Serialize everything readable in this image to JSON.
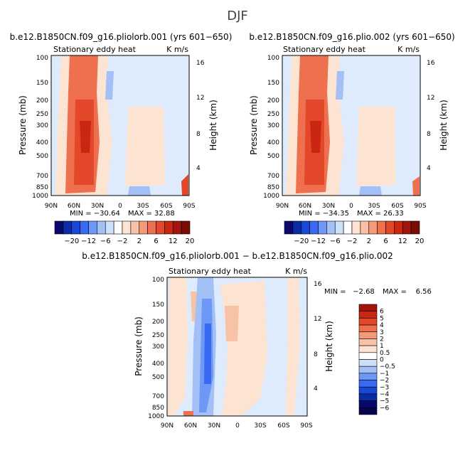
{
  "page_title": "DJF",
  "chart_data": [
    {
      "type": "heatmap",
      "title": "b.e12.B1850CN.f09_g16.pliolorb.001 (yrs 601−650)",
      "subtitle_left": "Stationary eddy heat",
      "subtitle_right": "K m/s",
      "ylabel": "Pressure (mb)",
      "ylabel_right": "Height (km)",
      "x_ticks": [
        "90N",
        "60N",
        "30N",
        "0",
        "30S",
        "60S",
        "90S"
      ],
      "y_ticks": [
        "100",
        "150",
        "200",
        "250",
        "300",
        "400",
        "500",
        "700",
        "850",
        "1000"
      ],
      "y_ticks_right": [
        "16",
        "12",
        "8",
        "4"
      ],
      "min_label": "MIN = −30.64",
      "max_label": "MAX = 32.88",
      "colorbar_labels": [
        "−20",
        "−12",
        "−6",
        "−2",
        "2",
        "6",
        "12",
        "20"
      ],
      "colorbar_colors": [
        "#08086e",
        "#0a2ca6",
        "#1848d8",
        "#3a6af2",
        "#6e98f6",
        "#a2c0f6",
        "#cde0fa",
        "#ffffff",
        "#fde4d2",
        "#f8c2a6",
        "#f49a7a",
        "#ee704e",
        "#e3482a",
        "#c92712",
        "#a5140a",
        "#7c0a05"
      ],
      "y_range_mb": [
        1000,
        100
      ],
      "x_range": [
        "90N",
        "90S"
      ]
    },
    {
      "type": "heatmap",
      "title": "b.e12.B1850CN.f09_g16.plio.002 (yrs 601−650)",
      "subtitle_left": "Stationary eddy heat",
      "subtitle_right": "K m/s",
      "ylabel": "Pressure (mb)",
      "ylabel_right": "Height (km)",
      "x_ticks": [
        "90N",
        "60N",
        "30N",
        "0",
        "30S",
        "60S",
        "90S"
      ],
      "y_ticks": [
        "100",
        "150",
        "200",
        "250",
        "300",
        "400",
        "500",
        "700",
        "850",
        "1000"
      ],
      "y_ticks_right": [
        "16",
        "12",
        "8",
        "4"
      ],
      "min_label": "MIN = −34.35",
      "max_label": "MAX = 26.33",
      "colorbar_labels": [
        "−20",
        "−12",
        "−6",
        "−2",
        "2",
        "6",
        "12",
        "20"
      ],
      "colorbar_colors": [
        "#08086e",
        "#0a2ca6",
        "#1848d8",
        "#3a6af2",
        "#6e98f6",
        "#a2c0f6",
        "#cde0fa",
        "#ffffff",
        "#fde4d2",
        "#f8c2a6",
        "#f49a7a",
        "#ee704e",
        "#e3482a",
        "#c92712",
        "#a5140a",
        "#7c0a05"
      ],
      "y_range_mb": [
        1000,
        100
      ],
      "x_range": [
        "90N",
        "90S"
      ]
    },
    {
      "type": "heatmap",
      "title": "b.e12.B1850CN.f09_g16.pliolorb.001 − b.e12.B1850CN.f09_g16.plio.002",
      "subtitle_left": "Stationary eddy heat",
      "subtitle_right": "K m/s",
      "ylabel": "Pressure (mb)",
      "ylabel_right": "Height (km)",
      "x_ticks": [
        "90N",
        "60N",
        "30N",
        "0",
        "30S",
        "60S",
        "90S"
      ],
      "y_ticks": [
        "100",
        "150",
        "200",
        "250",
        "300",
        "400",
        "500",
        "700",
        "850",
        "1000"
      ],
      "y_ticks_right": [
        "16",
        "12",
        "8",
        "4"
      ],
      "min_label": "MIN =   −2.68",
      "max_label": "MAX =    6.56",
      "colorbar_labels": [
        "6",
        "5",
        "4",
        "3",
        "2",
        "1",
        "0.5",
        "0",
        "−0.5",
        "−1",
        "−2",
        "−3",
        "−4",
        "−5",
        "−6"
      ],
      "colorbar_colors": [
        "#a5140a",
        "#c92712",
        "#e3482a",
        "#ee704e",
        "#f49a7a",
        "#f8c2a6",
        "#fde4d2",
        "#ffffff",
        "#cde0fa",
        "#a2c0f6",
        "#6e98f6",
        "#3a6af2",
        "#1848d8",
        "#0a2ca6",
        "#08086e",
        "#05054a"
      ],
      "y_range_mb": [
        1000,
        100
      ],
      "x_range": [
        "90N",
        "90S"
      ]
    }
  ]
}
